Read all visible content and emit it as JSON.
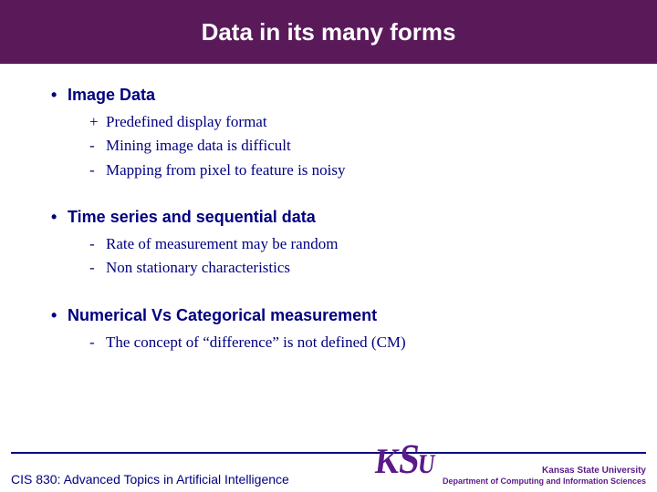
{
  "title": "Data in its many forms",
  "title_bar_color": "#5a1a5a",
  "text_color": "#000080",
  "sections": [
    {
      "head": "Image Data",
      "items": [
        {
          "mark": "+",
          "text": "Predefined display format"
        },
        {
          "mark": "-",
          "text": "Mining image data is difficult"
        },
        {
          "mark": "-",
          "text": "Mapping from pixel to feature is noisy"
        }
      ]
    },
    {
      "head": "Time series and sequential data",
      "items": [
        {
          "mark": "-",
          "text": "Rate of measurement may be random"
        },
        {
          "mark": "-",
          "text": "Non stationary characteristics"
        }
      ]
    },
    {
      "head": "Numerical Vs Categorical measurement",
      "items": [
        {
          "mark": "-",
          "text": "The concept of “difference” is not defined (CM)"
        }
      ]
    }
  ],
  "footer": {
    "course": "CIS 830: Advanced Topics in Artificial Intelligence",
    "logo": "KSU",
    "university": "Kansas State University",
    "department": "Department of Computing and Information Sciences",
    "brand_color": "#5a1a8a"
  }
}
